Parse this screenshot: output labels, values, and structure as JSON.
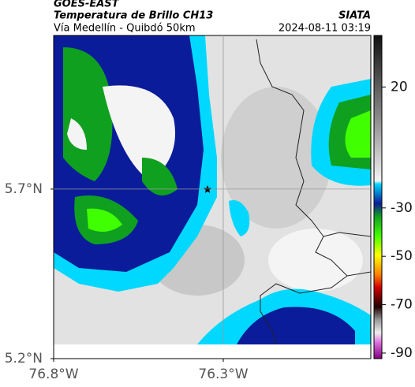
{
  "map": {
    "source": "GOES-EAST",
    "title": "Temperatura de Brillo CH13",
    "brand": "SIATA",
    "subtitle": "Vía Medellín - Quibdó 50km",
    "timestamp": "2024-08-11 03:19",
    "xlim": [
      -76.8,
      -75.865
    ],
    "ylim": [
      5.2,
      6.153
    ],
    "xticks": [
      {
        "value": -76.8,
        "label": "76.8°W"
      },
      {
        "value": -76.3,
        "label": "76.3°W"
      }
    ],
    "yticks": [
      {
        "value": 5.2,
        "label": "5.2°N"
      },
      {
        "value": 5.7,
        "label": "5.7°N"
      }
    ],
    "colorbar": {
      "lim": [
        -92.3,
        41.3
      ],
      "ticks": [
        20,
        -30,
        -50,
        -70,
        -90
      ]
    }
  }
}
